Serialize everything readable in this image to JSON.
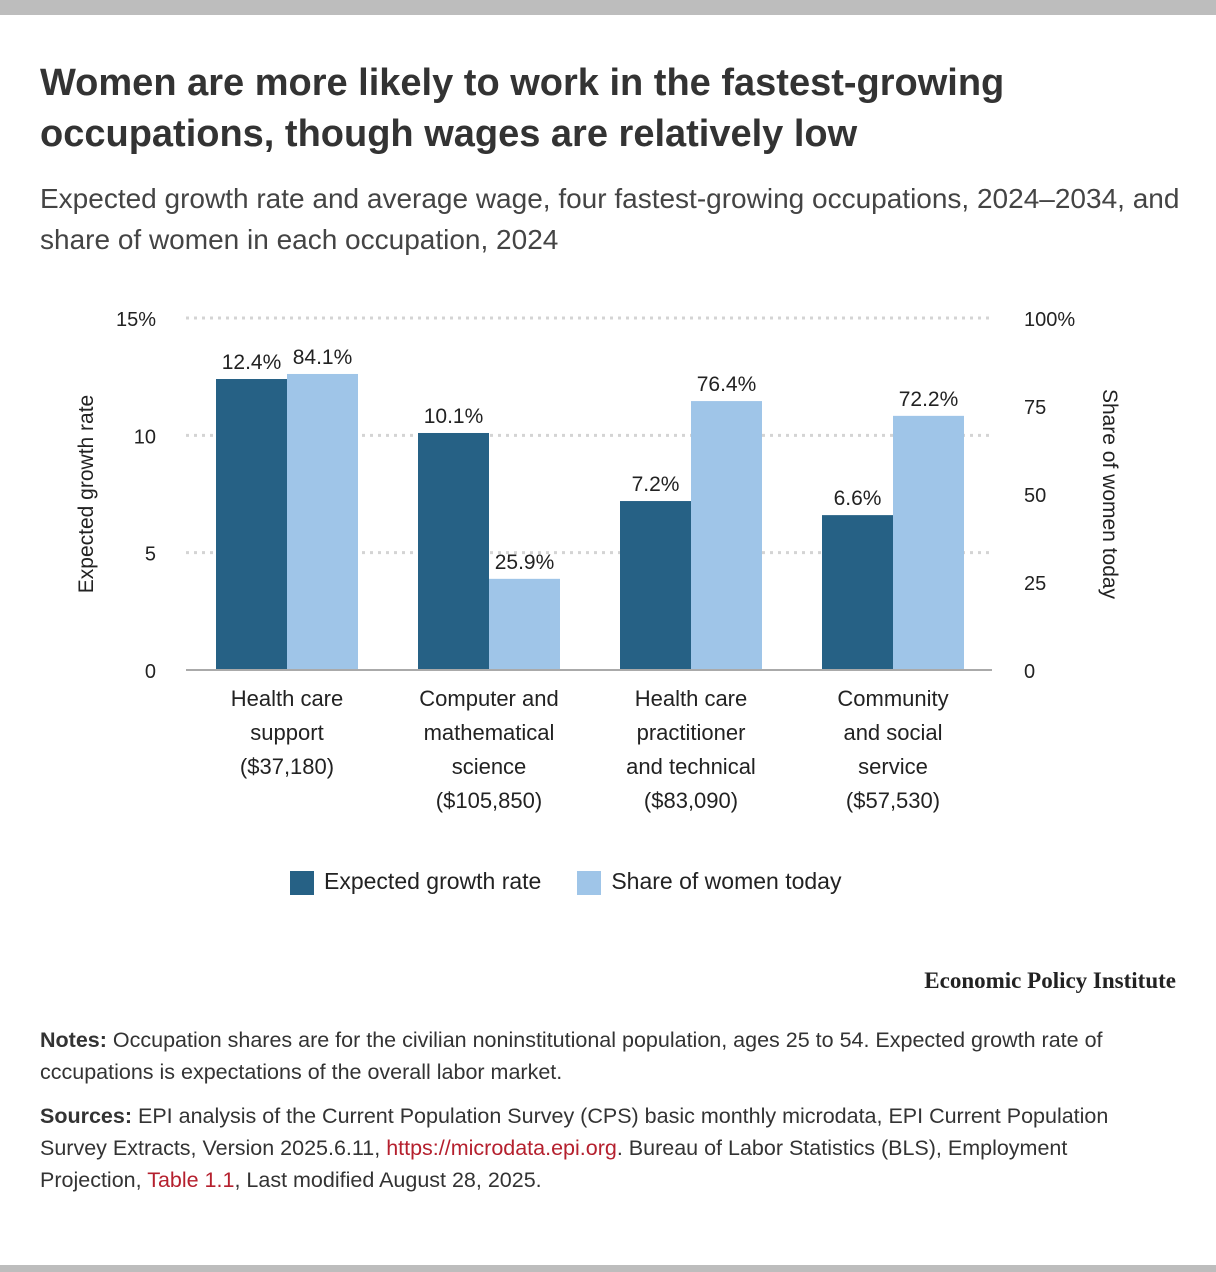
{
  "title": "Women are more likely to work in the fastest-growing occupations, though wages are relatively low",
  "subtitle": "Expected growth rate and average wage, four fastest-growing occupations, 2024–2034, and share of women in each occupation, 2024",
  "chart_data": {
    "type": "bar",
    "categories": [
      [
        "Health care",
        "support",
        "($37,180)"
      ],
      [
        "Computer and",
        "mathematical",
        "science",
        "($105,850)"
      ],
      [
        "Health care",
        "practitioner",
        "and technical",
        "($83,090)"
      ],
      [
        "Community",
        "and social",
        "service",
        "($57,530)"
      ]
    ],
    "series": [
      {
        "name": "Expected growth rate",
        "axis": "left",
        "values": [
          12.4,
          10.1,
          7.2,
          6.6
        ],
        "labels": [
          "12.4%",
          "10.1%",
          "7.2%",
          "6.6%"
        ],
        "color": "#266185"
      },
      {
        "name": "Share of women today",
        "axis": "right",
        "values": [
          84.1,
          25.9,
          76.4,
          72.2
        ],
        "labels": [
          "84.1%",
          "25.9%",
          "76.4%",
          "72.2%"
        ],
        "color": "#9fc5e8"
      }
    ],
    "ylabel": "Expected growth rate",
    "y2label": "Share of women today",
    "ylim": [
      0,
      15
    ],
    "y2lim": [
      0,
      100
    ],
    "yticks": [
      "0",
      "5",
      "10",
      "15%"
    ],
    "y2ticks": [
      "0",
      "25",
      "50",
      "75",
      "100%"
    ],
    "grid": true,
    "legend": "bottom-center"
  },
  "brand": "Economic Policy Institute",
  "notes": {
    "label": "Notes:",
    "text": "Occupation shares are for the civilian noninstitutional population, ages 25 to 54. Expected growth rate of cccupations is expectations of the overall labor market."
  },
  "sources": {
    "label": "Sources:",
    "text1": "EPI analysis of the Current Population Survey (CPS) basic monthly microdata, EPI Current Population Survey Extracts, Version 2025.6.11,",
    "link1": "https://microdata.epi.org",
    "text2": ". Bureau of Labor Statistics (BLS), Employment Projection,",
    "link2": "Table 1.1",
    "text3": ", Last modified August 28, 2025."
  }
}
